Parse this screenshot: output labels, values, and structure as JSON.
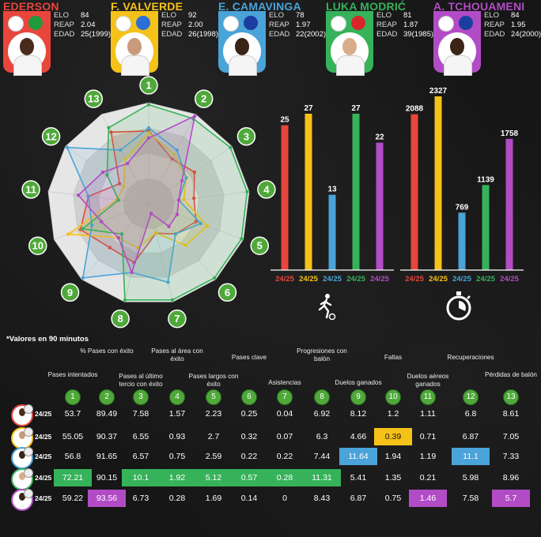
{
  "players": [
    {
      "name": "EDERSON",
      "color": "#e8463c",
      "flag_color": "#1f9a3c",
      "face_color": "#4a2a1a",
      "elo_label": "ELO",
      "elo": "84",
      "reap_label": "REAP",
      "reap": "2.04",
      "edad_label": "EDAD",
      "edad": "25(1999)"
    },
    {
      "name": "F. VALVERDE",
      "color": "#f5c21a",
      "flag_color": "#2b6fd6",
      "face_color": "#c99b7a",
      "elo_label": "ELO",
      "elo": "92",
      "reap_label": "REAP",
      "reap": "2.00",
      "edad_label": "EDAD",
      "edad": "26(1998)"
    },
    {
      "name": "E. CAMAVINGA",
      "color": "#4aa3d9",
      "flag_color": "#1b3fa0",
      "face_color": "#3a2416",
      "elo_label": "ELO",
      "elo": "78",
      "reap_label": "REAP",
      "reap": "1.97",
      "edad_label": "EDAD",
      "edad": "22(2002)"
    },
    {
      "name": "LUKA MODRIĆ",
      "color": "#36b25a",
      "flag_color": "#d9262b",
      "face_color": "#d8ae8a",
      "elo_label": "ELO",
      "elo": "81",
      "reap_label": "REAP",
      "reap": "1.87",
      "edad_label": "EDAD",
      "edad": "39(1985)"
    },
    {
      "name": "A. TCHOUAMENI",
      "color": "#b24cc6",
      "flag_color": "#1b3fa0",
      "face_color": "#3a2416",
      "elo_label": "ELO",
      "elo": "84",
      "reap_label": "REAP",
      "reap": "1.95",
      "edad_label": "EDAD",
      "edad": "24(2000)"
    }
  ],
  "note": "*Valores en 90 minutos",
  "season_label": "24/25",
  "icons": {
    "matches": "footballer-icon",
    "minutes": "stopwatch-icon"
  },
  "metrics": [
    {
      "num": "1",
      "label": "Pases intentados"
    },
    {
      "num": "2",
      "label": "% Pases con éxito"
    },
    {
      "num": "3",
      "label": "Pases al último tercio con éxito"
    },
    {
      "num": "4",
      "label": "Pases al área con éxito"
    },
    {
      "num": "5",
      "label": "Pases largos con éxito"
    },
    {
      "num": "6",
      "label": "Pases clave"
    },
    {
      "num": "7",
      "label": "Asistencias"
    },
    {
      "num": "8",
      "label": "Progresiones con balón"
    },
    {
      "num": "9",
      "label": "Duelos ganados"
    },
    {
      "num": "10",
      "label": "Faltas"
    },
    {
      "num": "11",
      "label": "Duelos aéreos ganados"
    },
    {
      "num": "12",
      "label": "Recuperaciones"
    },
    {
      "num": "13",
      "label": "Pérdidas de balón"
    }
  ],
  "chart_data": [
    {
      "type": "radar",
      "axes": [
        "1",
        "2",
        "3",
        "4",
        "5",
        "6",
        "7",
        "8",
        "9",
        "10",
        "11",
        "12",
        "13"
      ],
      "range": [
        0,
        1
      ],
      "series": [
        {
          "name": "EDERSON",
          "color": "#e8463c",
          "values": [
            0.72,
            0.5,
            0.55,
            0.45,
            0.5,
            0.4,
            0.3,
            0.6,
            0.58,
            0.72,
            0.6,
            0.35,
            0.8
          ]
        },
        {
          "name": "F. VALVERDE",
          "color": "#f5c21a",
          "values": [
            0.7,
            0.55,
            0.45,
            0.35,
            0.62,
            0.55,
            0.3,
            0.45,
            0.45,
            0.85,
            0.32,
            0.3,
            0.5
          ]
        },
        {
          "name": "E. CAMAVINGA",
          "color": "#4aa3d9",
          "values": [
            0.75,
            0.6,
            0.45,
            0.3,
            0.55,
            0.4,
            0.8,
            0.7,
            0.98,
            0.6,
            0.6,
            0.98,
            0.6
          ]
        },
        {
          "name": "LUKA MODRIĆ",
          "color": "#36b25a",
          "values": [
            0.98,
            0.95,
            0.98,
            0.98,
            0.98,
            0.98,
            0.98,
            0.98,
            0.4,
            0.7,
            0.3,
            0.5,
            0.85
          ]
        },
        {
          "name": "A. TCHOUAMENI",
          "color": "#b24cc6",
          "values": [
            0.65,
            0.98,
            0.4,
            0.3,
            0.3,
            0.3,
            0.1,
            0.7,
            0.45,
            0.5,
            0.7,
            0.55,
            0.45
          ]
        }
      ]
    },
    {
      "type": "bar",
      "title_icon": "footballer-icon",
      "categories": [
        "24/25",
        "24/25",
        "24/25",
        "24/25",
        "24/25"
      ],
      "values": [
        25,
        27,
        13,
        27,
        22
      ],
      "colors": [
        "#e8463c",
        "#f5c21a",
        "#4aa3d9",
        "#36b25a",
        "#b24cc6"
      ],
      "ylim": [
        0,
        27
      ]
    },
    {
      "type": "bar",
      "title_icon": "stopwatch-icon",
      "categories": [
        "24/25",
        "24/25",
        "24/25",
        "24/25",
        "24/25"
      ],
      "values": [
        2088,
        2327,
        769,
        1139,
        1758
      ],
      "colors": [
        "#e8463c",
        "#f5c21a",
        "#4aa3d9",
        "#36b25a",
        "#b24cc6"
      ],
      "ylim": [
        0,
        2327
      ]
    },
    {
      "type": "table",
      "columns": [
        "1",
        "2",
        "3",
        "4",
        "5",
        "6",
        "7",
        "8",
        "9",
        "10",
        "11",
        "12",
        "13"
      ],
      "rows": [
        {
          "player": "EDERSON",
          "season": "24/25",
          "values": [
            "53.7",
            "89.49",
            "7.58",
            "1.57",
            "2.23",
            "0.25",
            "0.04",
            "6.92",
            "8.12",
            "1.2",
            "1.11",
            "6.8",
            "8.61"
          ]
        },
        {
          "player": "F. VALVERDE",
          "season": "24/25",
          "values": [
            "55.05",
            "90.37",
            "6.55",
            "0.93",
            "2.7",
            "0.32",
            "0.07",
            "6.3",
            "4.66",
            "0.39",
            "0.71",
            "6.87",
            "7.05"
          ]
        },
        {
          "player": "E. CAMAVINGA",
          "season": "24/25",
          "values": [
            "56.8",
            "91.65",
            "6.57",
            "0.75",
            "2.59",
            "0.22",
            "0.22",
            "7.44",
            "11.64",
            "1.94",
            "1.19",
            "11.1",
            "7.33"
          ]
        },
        {
          "player": "LUKA MODRIĆ",
          "season": "24/25",
          "values": [
            "72.21",
            "90.15",
            "10.1",
            "1.92",
            "5.12",
            "0.57",
            "0.28",
            "11.31",
            "5.41",
            "1.35",
            "0.21",
            "5.98",
            "8.96"
          ]
        },
        {
          "player": "A. TCHOUAMENI",
          "season": "24/25",
          "values": [
            "59.22",
            "93.56",
            "6.73",
            "0.28",
            "1.69",
            "0.14",
            "0",
            "8.43",
            "6.87",
            "0.75",
            "1.46",
            "7.58",
            "5.7"
          ]
        }
      ],
      "highlights": [
        {
          "row": 1,
          "col": 9,
          "color": "#f5c21a"
        },
        {
          "row": 2,
          "col": 8,
          "color": "#4aa3d9"
        },
        {
          "row": 2,
          "col": 11,
          "color": "#4aa3d9"
        },
        {
          "row": 3,
          "col": 0,
          "color": "#36b25a"
        },
        {
          "row": 3,
          "col": 2,
          "color": "#36b25a"
        },
        {
          "row": 3,
          "col": 3,
          "color": "#36b25a"
        },
        {
          "row": 3,
          "col": 4,
          "color": "#36b25a"
        },
        {
          "row": 3,
          "col": 5,
          "color": "#36b25a"
        },
        {
          "row": 3,
          "col": 6,
          "color": "#36b25a"
        },
        {
          "row": 3,
          "col": 7,
          "color": "#36b25a"
        },
        {
          "row": 4,
          "col": 1,
          "color": "#b24cc6"
        },
        {
          "row": 4,
          "col": 10,
          "color": "#b24cc6"
        },
        {
          "row": 4,
          "col": 12,
          "color": "#b24cc6"
        }
      ]
    }
  ]
}
